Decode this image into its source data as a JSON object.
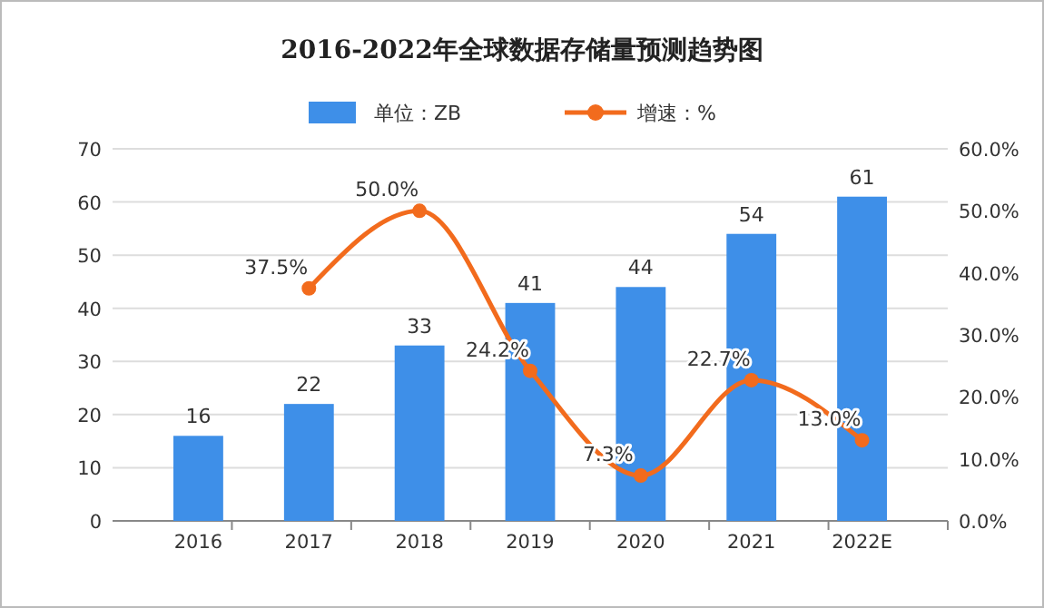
{
  "chart_data": {
    "type": "bar",
    "title": "2016-2022年全球数据存储量预测趋势图",
    "categories": [
      "2016",
      "2017",
      "2018",
      "2019",
      "2020",
      "2021",
      "2022E"
    ],
    "series": [
      {
        "name": "单位：ZB",
        "color": "#3e8fe8",
        "values": [
          16,
          22,
          33,
          41,
          44,
          54,
          61
        ],
        "value_labels": [
          "16",
          "22",
          "33",
          "41",
          "44",
          "54",
          "61"
        ]
      },
      {
        "name": "增速：%",
        "type": "line",
        "axis": "y2",
        "color": "#f26b1d",
        "marker": "circle",
        "values": [
          null,
          37.5,
          50.0,
          24.2,
          7.3,
          22.7,
          13.0
        ],
        "value_labels": [
          null,
          "37.5%",
          "50.0%",
          "24.2%",
          "7.3%",
          "22.7%",
          "13.0%"
        ]
      }
    ],
    "ylim": [
      0,
      70
    ],
    "yticks": [
      0,
      10,
      20,
      30,
      40,
      50,
      60,
      70
    ],
    "y2lim": [
      0,
      60
    ],
    "y2ticks": [
      {
        "value": 0,
        "label": "0.0%"
      },
      {
        "value": 10,
        "label": "10.0%"
      },
      {
        "value": 20,
        "label": "20.0%"
      },
      {
        "value": 30,
        "label": "30.0%"
      },
      {
        "value": 40,
        "label": "40.0%"
      },
      {
        "value": 50,
        "label": "50.0%"
      },
      {
        "value": 60,
        "label": "60.0%"
      }
    ],
    "grid": "y",
    "legend": "top"
  }
}
